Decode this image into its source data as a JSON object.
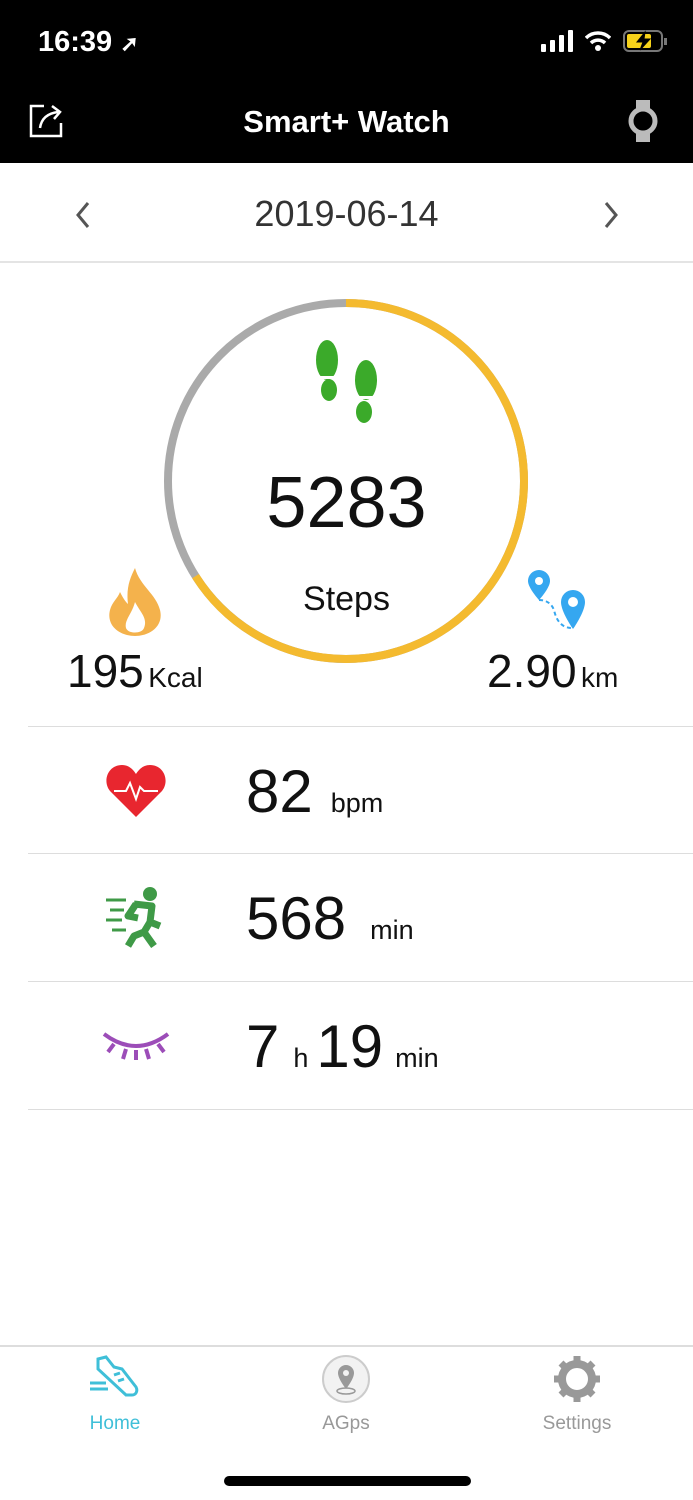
{
  "status_bar": {
    "time": "16:39",
    "icons": [
      "location-arrow-icon",
      "signal-icon",
      "wifi-icon",
      "battery-charging-icon"
    ]
  },
  "header": {
    "title": "Smart+ Watch",
    "left_icon": "share-icon",
    "right_icon": "watch-icon"
  },
  "date_nav": {
    "date": "2019-06-14"
  },
  "steps": {
    "value": "5283",
    "label": "Steps",
    "progress": 0.66,
    "colors": {
      "progress": "#F4BA2F",
      "track": "#AAAAAA",
      "icon": "#3BAA2A"
    }
  },
  "calories": {
    "value": "195",
    "unit": "Kcal",
    "color": "#F4B24C"
  },
  "distance": {
    "value": "2.90",
    "unit": "km",
    "color": "#35A7F0"
  },
  "metrics": [
    {
      "icon": "heart-rate-icon",
      "value": "82",
      "unit": "bpm",
      "color": "#E8262F"
    },
    {
      "icon": "running-icon",
      "value": "568",
      "unit": "min",
      "color": "#3F9A47"
    },
    {
      "icon": "sleep-eye-icon",
      "value_h": "7",
      "unit_h": "h",
      "value_m": "19",
      "unit_m": "min",
      "color": "#9C4DB8"
    }
  ],
  "tabs": [
    {
      "label": "Home",
      "active": true,
      "color": "#3FBFD8"
    },
    {
      "label": "AGps",
      "active": false
    },
    {
      "label": "Settings",
      "active": false
    }
  ]
}
